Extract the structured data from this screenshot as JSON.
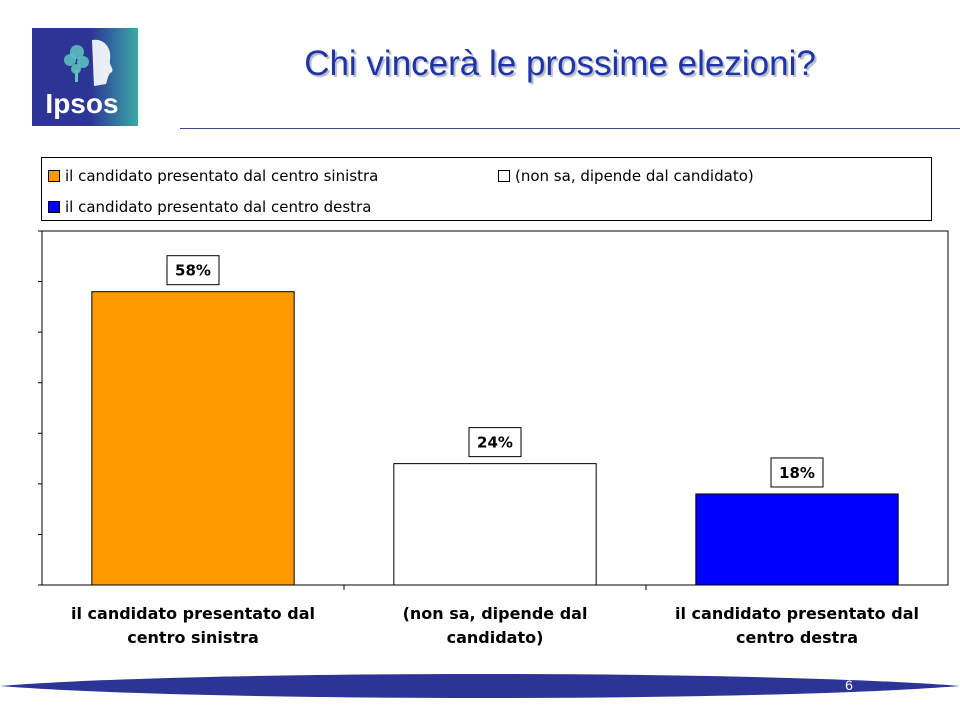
{
  "header": {
    "logo_text": "Ipsos",
    "title": "Chi vincerà le prossime elezioni?"
  },
  "colors": {
    "brand_blue": "#2c3596",
    "brand_teal": "#3aa9a6",
    "title_blue": "#1f34a8",
    "footer_blue": "#2c3596"
  },
  "footer": {
    "page_number": "6"
  },
  "chart_data": {
    "type": "bar",
    "title": "",
    "xlabel": "",
    "ylabel": "",
    "ylim": [
      0,
      70
    ],
    "grid": false,
    "legend_position": "top",
    "categories": [
      [
        "il candidato presentato dal",
        "centro sinistra"
      ],
      [
        "(non sa, dipende dal",
        "candidato)"
      ],
      [
        "il candidato presentato dal",
        "centro destra"
      ]
    ],
    "series": [
      {
        "name": "il candidato presentato dal centro sinistra",
        "color": "#ff9900",
        "value": 58,
        "label": "58%"
      },
      {
        "name": "(non sa, dipende dal candidato)",
        "color": "#ffffff",
        "value": 24,
        "label": "24%"
      },
      {
        "name": "il candidato presentato dal centro destra",
        "color": "#0000ff",
        "value": 18,
        "label": "18%"
      }
    ]
  }
}
